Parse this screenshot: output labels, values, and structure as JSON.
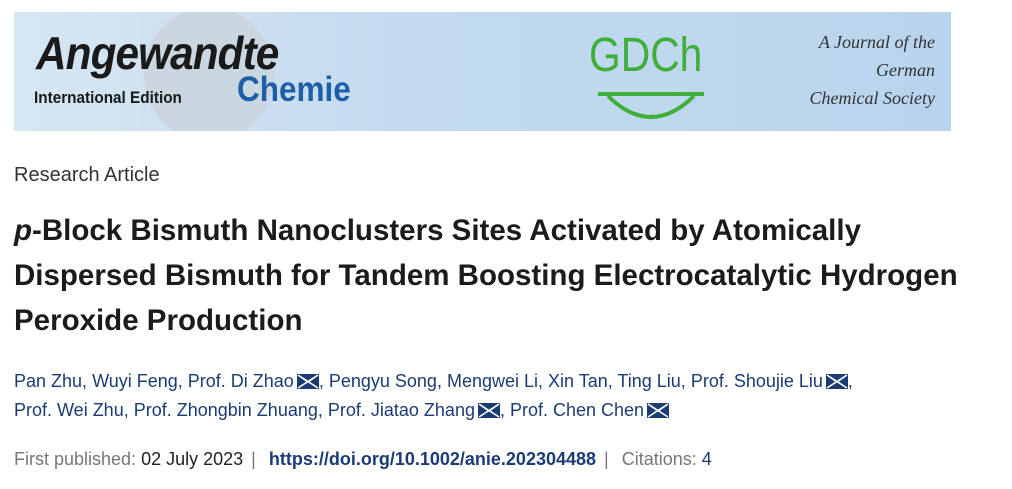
{
  "banner": {
    "journal_name": "Angewandte",
    "edition": "International Edition",
    "journal_name_2": "Chemie",
    "society_logo": "GDCh",
    "society_lines": [
      "A Journal of the",
      "German",
      "Chemical Society"
    ]
  },
  "article_type": "Research Article",
  "title": {
    "italic_prefix": "p",
    "rest": "-Block Bismuth Nanoclusters Sites Activated by Atomically Dispersed Bismuth for Tandem Boosting Electrocatalytic Hydrogen Peroxide Production"
  },
  "authors": [
    {
      "name": "Pan Zhu",
      "email": false
    },
    {
      "name": "Wuyi Feng",
      "email": false
    },
    {
      "name": "Prof. Di Zhao",
      "email": true
    },
    {
      "name": "Pengyu Song",
      "email": false
    },
    {
      "name": "Mengwei Li",
      "email": false
    },
    {
      "name": "Xin Tan",
      "email": false
    },
    {
      "name": "Ting Liu",
      "email": false
    },
    {
      "name": "Prof. Shoujie Liu",
      "email": true
    },
    {
      "name": "Prof. Wei Zhu",
      "email": false
    },
    {
      "name": "Prof. Zhongbin Zhuang",
      "email": false
    },
    {
      "name": "Prof. Jiatao Zhang",
      "email": true
    },
    {
      "name": "Prof. Chen Chen",
      "email": true
    }
  ],
  "meta": {
    "published_label": "First published:",
    "published_date": "02 July 2023",
    "separator": "|",
    "doi": "https://doi.org/10.1002/anie.202304488",
    "citations_label": "Citations:",
    "citations": "4"
  },
  "colors": {
    "link": "#1b3c72",
    "gdch_green": "#3faf3a",
    "chemie_blue": "#1d5fa8"
  }
}
